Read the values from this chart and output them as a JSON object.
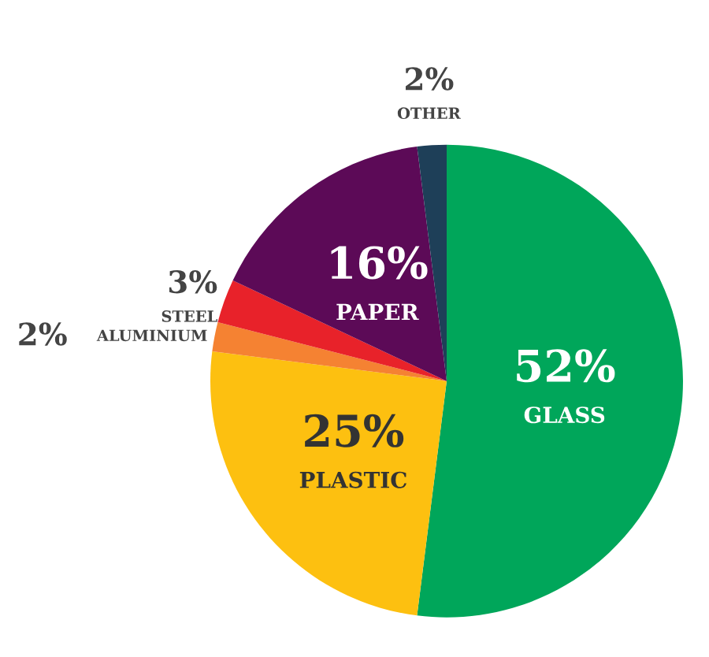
{
  "chart_data": {
    "type": "pie",
    "categories": [
      "GLASS",
      "PLASTIC",
      "ALUMINIUM",
      "STEEL",
      "PAPER",
      "OTHER"
    ],
    "values": [
      52,
      25,
      2,
      3,
      16,
      2
    ],
    "value_labels": [
      "52%",
      "25%",
      "2%",
      "3%",
      "16%",
      "2%"
    ],
    "colors": [
      "#00a65a",
      "#fdc010",
      "#f58232",
      "#e8222a",
      "#5c0a57",
      "#1e3f58"
    ]
  }
}
